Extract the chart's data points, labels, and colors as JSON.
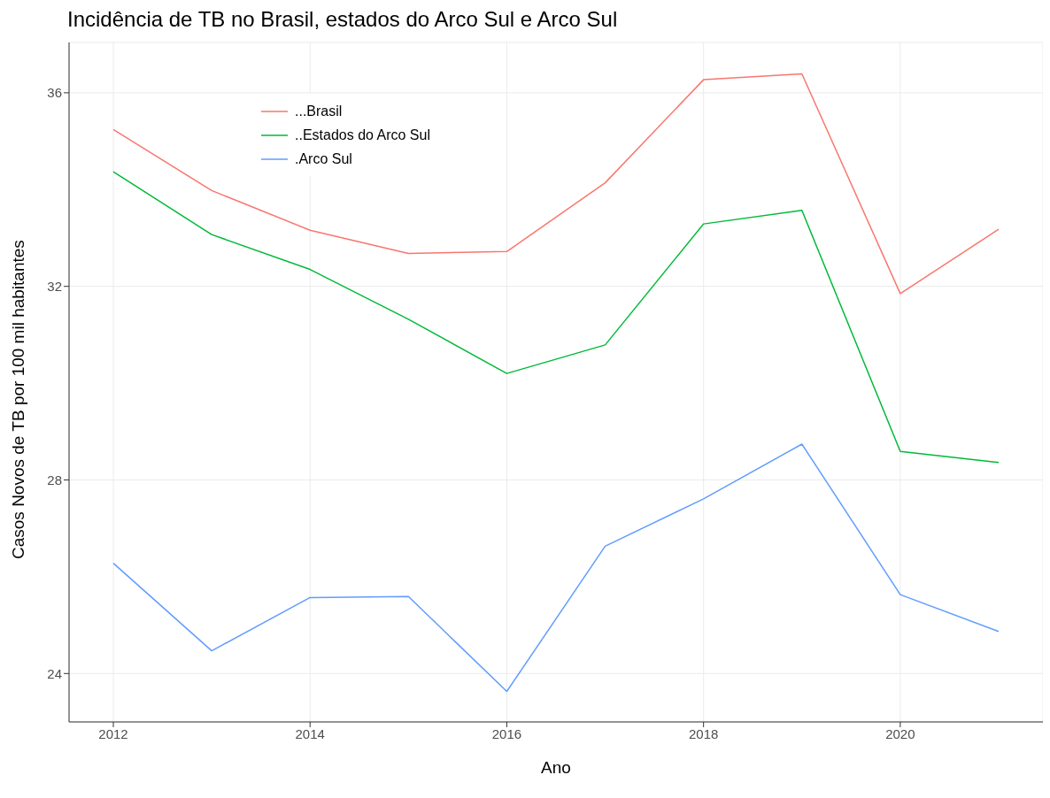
{
  "chart_data": {
    "type": "line",
    "title": "Incidência de TB no Brasil, estados do Arco Sul e Arco Sul",
    "xlabel": "Ano",
    "ylabel": "Casos Novos de TB por 100 mil habitantes",
    "x": [
      2012,
      2013,
      2014,
      2015,
      2016,
      2017,
      2018,
      2019,
      2020,
      2021
    ],
    "series": [
      {
        "name": "...Brasil",
        "color": "#f8766d",
        "values": [
          35.24,
          33.98,
          33.16,
          32.68,
          32.72,
          34.14,
          36.27,
          36.39,
          31.85,
          33.18
        ]
      },
      {
        "name": "..Estados do Arco Sul",
        "color": "#00ba38",
        "values": [
          34.37,
          33.07,
          32.35,
          31.32,
          30.2,
          30.79,
          33.29,
          33.57,
          28.59,
          28.36
        ]
      },
      {
        "name": ".Arco Sul",
        "color": "#619cff",
        "values": [
          26.28,
          24.47,
          25.57,
          25.59,
          23.63,
          26.63,
          27.61,
          28.74,
          25.63,
          24.87
        ]
      }
    ],
    "xlim": [
      2011.55,
      2021.45
    ],
    "xticks": [
      2014,
      2016,
      2018,
      2020,
      2012
    ],
    "ylim": [
      23,
      37.04
    ],
    "yticks": [
      24,
      28,
      32,
      36
    ],
    "grid": true,
    "legend": "top left",
    "marker": "none",
    "line_style": "solid"
  }
}
